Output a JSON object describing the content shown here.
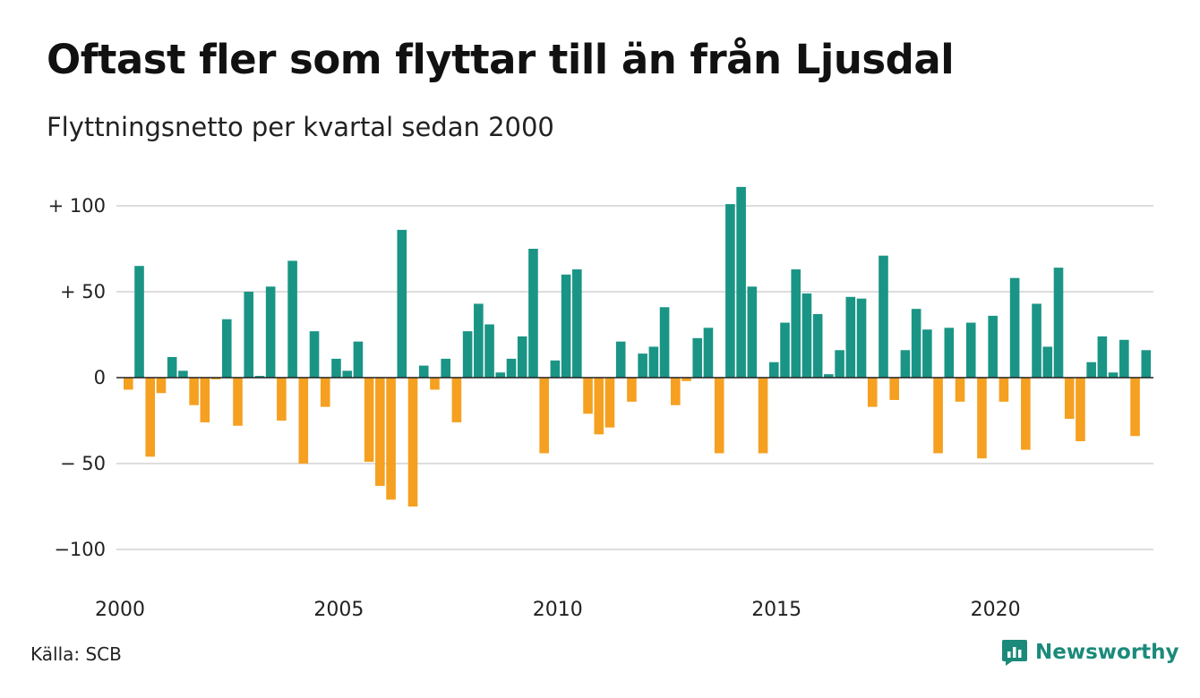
{
  "title": "Oftast fler som flyttar till än från Ljusdal",
  "subtitle": "Flyttningsnetto per kvartal sedan 2000",
  "source": "Källa: SCB",
  "brand": {
    "name": "Newsworthy",
    "icon": "newsworthy-logo-icon",
    "color": "#1b8a7a"
  },
  "colors": {
    "positive": "#1a9585",
    "negative": "#f5a020",
    "grid": "#dddddd",
    "zero_line": "#222222"
  },
  "chart_data": {
    "type": "bar",
    "title": "Oftast fler som flyttar till än från Ljusdal",
    "subtitle": "Flyttningsnetto per kvartal sedan 2000",
    "x_start": "2000 Q1",
    "ylim": [
      -115,
      115
    ],
    "yticks": [
      {
        "value": 100,
        "label": "+ 100"
      },
      {
        "value": 50,
        "label": "+  50"
      },
      {
        "value": 0,
        "label": "0"
      },
      {
        "value": -50,
        "label": "− 50"
      },
      {
        "value": -100,
        "label": "−100"
      }
    ],
    "xticks": [
      {
        "year": 2000,
        "label": "2000"
      },
      {
        "year": 2005,
        "label": "2005"
      },
      {
        "year": 2010,
        "label": "2010"
      },
      {
        "year": 2015,
        "label": "2015"
      },
      {
        "year": 2020,
        "label": "2020"
      }
    ],
    "grid": true,
    "values": [
      -7,
      65,
      -46,
      -9,
      12,
      4,
      -16,
      -26,
      -1,
      34,
      -28,
      50,
      1,
      53,
      -25,
      68,
      -50,
      27,
      -17,
      11,
      4,
      21,
      -49,
      -63,
      -71,
      86,
      -75,
      7,
      -7,
      11,
      -26,
      27,
      43,
      31,
      3,
      11,
      24,
      75,
      -44,
      10,
      60,
      63,
      -21,
      -33,
      -29,
      21,
      -14,
      14,
      18,
      41,
      -16,
      -2,
      23,
      29,
      -44,
      101,
      111,
      53,
      -44,
      9,
      32,
      63,
      49,
      37,
      2,
      16,
      47,
      46,
      -17,
      71,
      -13,
      16,
      40,
      28,
      -44,
      29,
      -14,
      32,
      -47,
      36,
      -14,
      58,
      -42,
      43,
      18,
      64,
      -24,
      -37,
      9,
      24,
      3,
      22,
      -34,
      16
    ]
  }
}
